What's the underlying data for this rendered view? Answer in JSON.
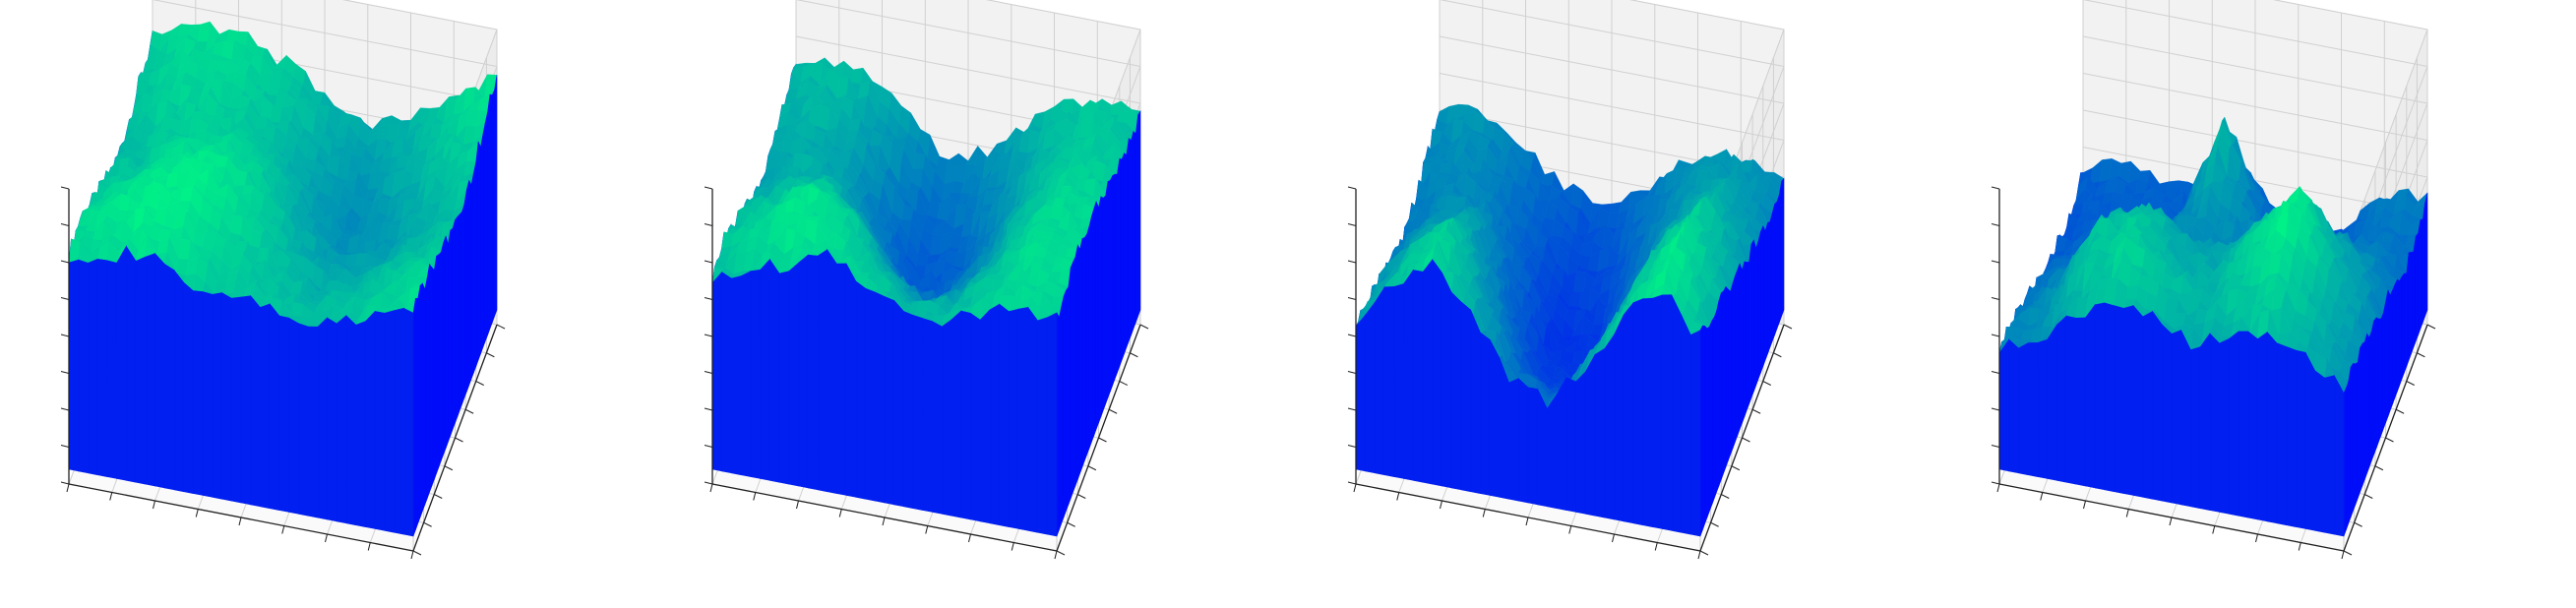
{
  "figure": {
    "colormap": {
      "name": "winter",
      "low": "#0000ff",
      "high": "#00ff80"
    },
    "pane_fill": "#f2f2f2",
    "grid_color": "#d0d0d0",
    "axis_color": "#222222"
  },
  "chart_data": [
    {
      "type": "surface",
      "title": "",
      "xlabel": "",
      "ylabel": "",
      "zlabel": "",
      "tick_labels_visible": false,
      "grid": true,
      "view": {
        "elev": 30,
        "azim": -60
      },
      "xlim": [
        0,
        1
      ],
      "ylim": [
        0,
        1
      ],
      "zlim": [
        0,
        1
      ],
      "z_grid": [
        [
          0.78,
          0.8,
          0.83,
          0.76,
          0.72,
          0.74,
          0.7,
          0.71,
          0.77,
          0.82
        ],
        [
          0.8,
          0.86,
          0.9,
          0.84,
          0.76,
          0.72,
          0.68,
          0.7,
          0.75,
          0.8
        ],
        [
          0.74,
          0.82,
          0.88,
          0.9,
          0.8,
          0.7,
          0.62,
          0.64,
          0.72,
          0.78
        ],
        [
          0.7,
          0.76,
          0.84,
          0.86,
          0.78,
          0.66,
          0.56,
          0.58,
          0.66,
          0.74
        ],
        [
          0.66,
          0.72,
          0.78,
          0.8,
          0.74,
          0.6,
          0.5,
          0.54,
          0.62,
          0.7
        ],
        [
          0.68,
          0.74,
          0.76,
          0.74,
          0.68,
          0.56,
          0.48,
          0.56,
          0.66,
          0.74
        ],
        [
          0.72,
          0.78,
          0.8,
          0.76,
          0.7,
          0.6,
          0.54,
          0.62,
          0.72,
          0.8
        ],
        [
          0.74,
          0.8,
          0.82,
          0.78,
          0.72,
          0.64,
          0.6,
          0.66,
          0.76,
          0.84
        ]
      ]
    },
    {
      "type": "surface",
      "title": "",
      "xlabel": "",
      "ylabel": "",
      "zlabel": "",
      "tick_labels_visible": false,
      "grid": true,
      "view": {
        "elev": 30,
        "azim": -60
      },
      "xlim": [
        0,
        1
      ],
      "ylim": [
        0,
        1
      ],
      "zlim": [
        0,
        1
      ],
      "z_grid": [
        [
          0.7,
          0.74,
          0.8,
          0.84,
          0.78,
          0.72,
          0.7,
          0.76,
          0.8,
          0.78
        ],
        [
          0.72,
          0.8,
          0.86,
          0.82,
          0.72,
          0.62,
          0.66,
          0.74,
          0.82,
          0.8
        ],
        [
          0.68,
          0.76,
          0.84,
          0.78,
          0.6,
          0.5,
          0.58,
          0.72,
          0.84,
          0.82
        ],
        [
          0.62,
          0.7,
          0.74,
          0.62,
          0.44,
          0.4,
          0.52,
          0.7,
          0.82,
          0.8
        ],
        [
          0.58,
          0.64,
          0.64,
          0.48,
          0.3,
          0.34,
          0.5,
          0.68,
          0.8,
          0.78
        ],
        [
          0.6,
          0.62,
          0.56,
          0.4,
          0.26,
          0.32,
          0.48,
          0.66,
          0.76,
          0.74
        ],
        [
          0.64,
          0.66,
          0.6,
          0.46,
          0.34,
          0.4,
          0.54,
          0.68,
          0.74,
          0.72
        ],
        [
          0.66,
          0.7,
          0.66,
          0.54,
          0.44,
          0.48,
          0.6,
          0.7,
          0.74,
          0.72
        ]
      ]
    },
    {
      "type": "surface",
      "title": "",
      "xlabel": "",
      "ylabel": "",
      "zlabel": "",
      "tick_labels_visible": false,
      "grid": true,
      "view": {
        "elev": 30,
        "azim": -60
      },
      "xlim": [
        0,
        1
      ],
      "ylim": [
        0,
        1
      ],
      "zlim": [
        0,
        1
      ],
      "z_grid": [
        [
          0.56,
          0.7,
          0.82,
          0.66,
          0.46,
          0.4,
          0.56,
          0.74,
          0.86,
          0.72
        ],
        [
          0.52,
          0.68,
          0.8,
          0.6,
          0.36,
          0.3,
          0.5,
          0.72,
          0.88,
          0.7
        ],
        [
          0.48,
          0.62,
          0.72,
          0.5,
          0.24,
          0.2,
          0.44,
          0.7,
          0.86,
          0.66
        ],
        [
          0.44,
          0.56,
          0.62,
          0.4,
          0.16,
          0.14,
          0.4,
          0.66,
          0.8,
          0.6
        ],
        [
          0.4,
          0.5,
          0.54,
          0.34,
          0.12,
          0.12,
          0.38,
          0.6,
          0.72,
          0.56
        ],
        [
          0.42,
          0.48,
          0.46,
          0.3,
          0.14,
          0.18,
          0.4,
          0.56,
          0.64,
          0.52
        ],
        [
          0.46,
          0.5,
          0.44,
          0.3,
          0.2,
          0.26,
          0.42,
          0.54,
          0.58,
          0.5
        ],
        [
          0.5,
          0.52,
          0.46,
          0.34,
          0.28,
          0.32,
          0.44,
          0.52,
          0.54,
          0.5
        ]
      ]
    },
    {
      "type": "surface",
      "title": "",
      "xlabel": "",
      "ylabel": "",
      "zlabel": "",
      "tick_labels_visible": false,
      "grid": true,
      "view": {
        "elev": 30,
        "azim": -60
      },
      "xlim": [
        0,
        1
      ],
      "ylim": [
        0,
        1
      ],
      "zlim": [
        0,
        1
      ],
      "z_grid": [
        [
          0.46,
          0.5,
          0.62,
          0.7,
          0.66,
          0.6,
          0.64,
          0.7,
          0.62,
          0.56
        ],
        [
          0.44,
          0.52,
          0.7,
          0.78,
          0.72,
          0.66,
          0.72,
          0.8,
          0.66,
          0.54
        ],
        [
          0.4,
          0.5,
          0.72,
          0.74,
          0.64,
          0.62,
          0.76,
          0.92,
          0.7,
          0.52
        ],
        [
          0.34,
          0.44,
          0.62,
          0.7,
          0.6,
          0.58,
          0.72,
          0.84,
          0.64,
          0.48
        ],
        [
          0.3,
          0.38,
          0.46,
          0.52,
          0.46,
          0.5,
          0.6,
          0.66,
          0.56,
          0.44
        ],
        [
          0.28,
          0.32,
          0.36,
          0.4,
          0.58,
          0.46,
          0.4,
          0.44,
          0.46,
          0.4
        ],
        [
          0.26,
          0.3,
          0.3,
          0.34,
          0.7,
          0.4,
          0.24,
          0.3,
          0.4,
          0.38
        ],
        [
          0.3,
          0.34,
          0.32,
          0.3,
          0.44,
          0.3,
          0.2,
          0.28,
          0.42,
          0.44
        ]
      ]
    }
  ]
}
